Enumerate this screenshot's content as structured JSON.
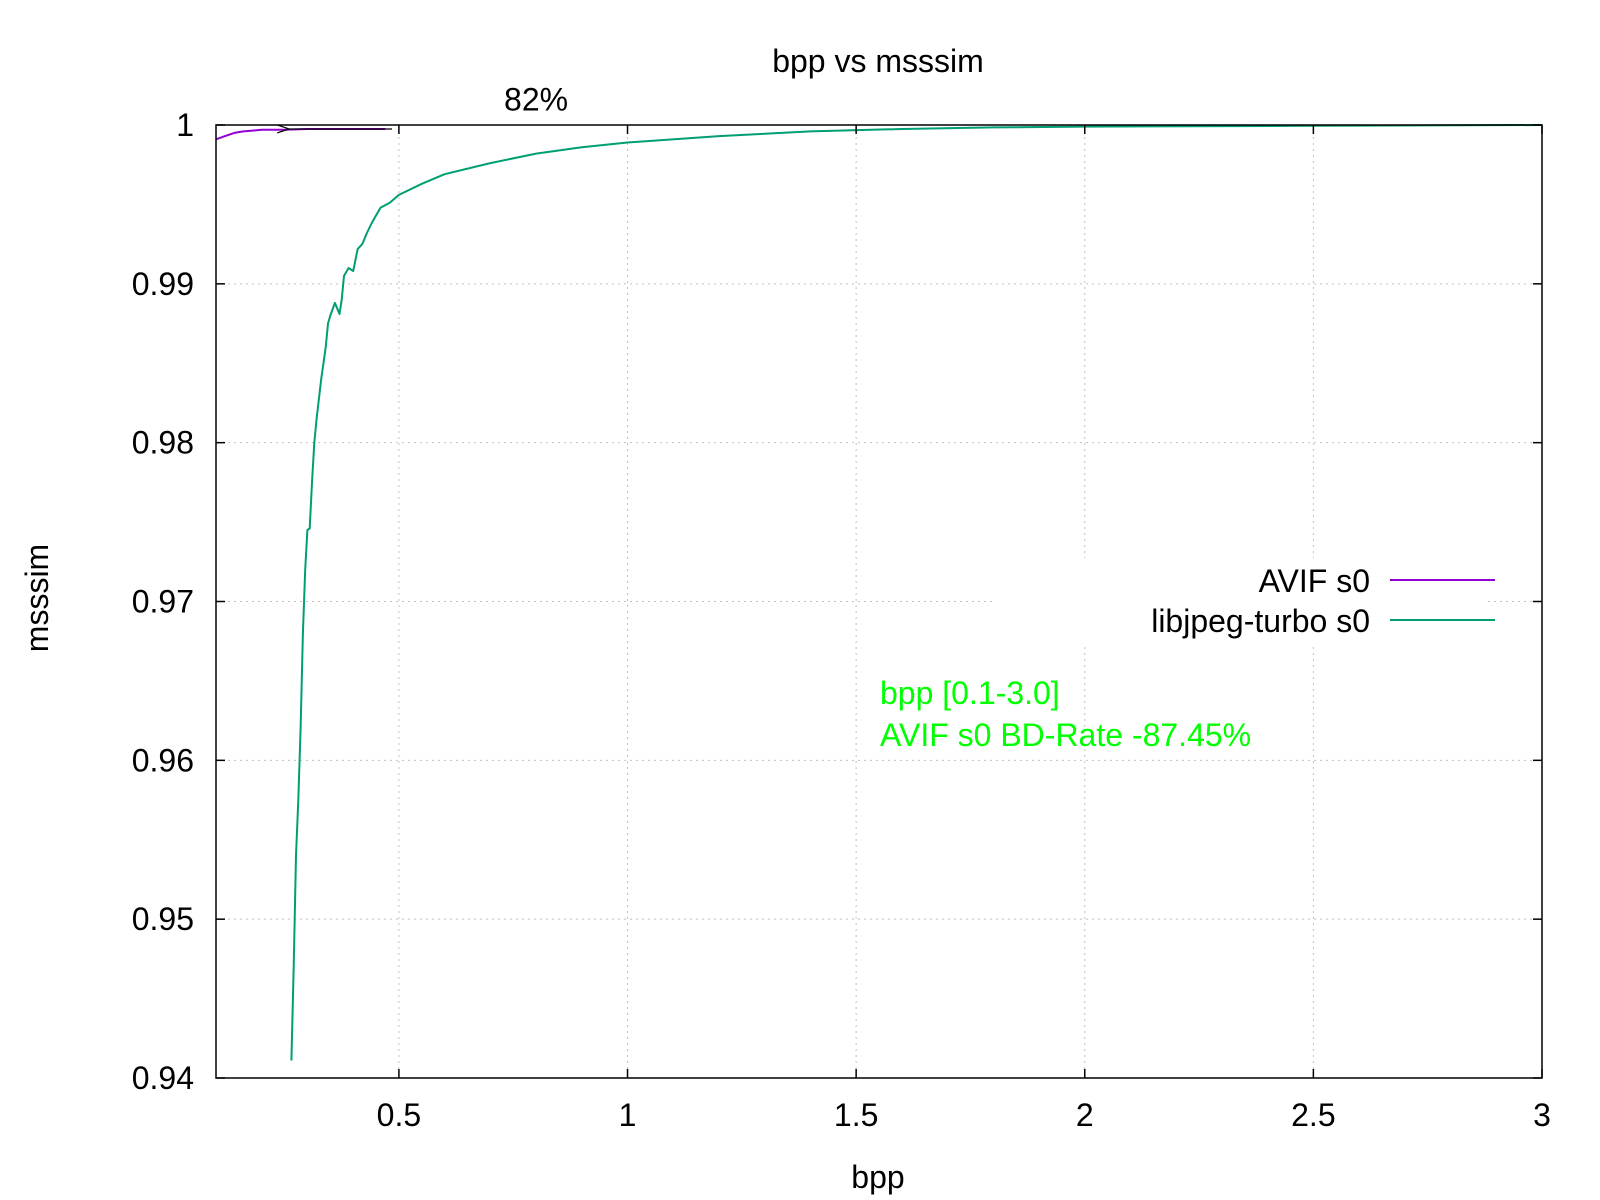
{
  "chart_data": {
    "type": "line",
    "title": "bpp vs msssim",
    "xlabel": "bpp",
    "ylabel": "msssim",
    "xlim": [
      0.1,
      3.0
    ],
    "ylim": [
      0.94,
      1.0
    ],
    "grid": true,
    "legend_position": "right",
    "x_ticks": [
      {
        "value": 0.5,
        "label": "0.5"
      },
      {
        "value": 1.0,
        "label": "1"
      },
      {
        "value": 1.5,
        "label": "1.5"
      },
      {
        "value": 2.0,
        "label": "2"
      },
      {
        "value": 2.5,
        "label": "2.5"
      },
      {
        "value": 3.0,
        "label": "3"
      }
    ],
    "y_ticks": [
      {
        "value": 0.94,
        "label": "0.94"
      },
      {
        "value": 0.95,
        "label": "0.95"
      },
      {
        "value": 0.96,
        "label": "0.96"
      },
      {
        "value": 0.97,
        "label": "0.97"
      },
      {
        "value": 0.98,
        "label": "0.98"
      },
      {
        "value": 0.99,
        "label": "0.99"
      },
      {
        "value": 1.0,
        "label": "1"
      }
    ],
    "series": [
      {
        "name": "AVIF s0",
        "color": "#9400d3",
        "x": [
          0.1,
          0.12,
          0.14,
          0.16,
          0.18,
          0.2,
          0.25,
          0.3,
          0.35,
          0.4,
          0.47
        ],
        "y": [
          0.9991,
          0.9993,
          0.9995,
          0.9996,
          0.99965,
          0.9997,
          0.9997,
          0.99975,
          0.99975,
          0.99975,
          0.99975
        ]
      },
      {
        "name": "libjpeg-turbo s0",
        "color": "#009e73",
        "x": [
          0.265,
          0.27,
          0.275,
          0.28,
          0.285,
          0.29,
          0.295,
          0.3,
          0.305,
          0.31,
          0.315,
          0.32,
          0.33,
          0.34,
          0.345,
          0.35,
          0.36,
          0.37,
          0.375,
          0.38,
          0.39,
          0.4,
          0.41,
          0.42,
          0.43,
          0.44,
          0.45,
          0.46,
          0.48,
          0.5,
          0.55,
          0.6,
          0.7,
          0.8,
          0.9,
          1.0,
          1.2,
          1.4,
          1.6,
          1.8,
          2.0,
          2.5,
          3.0
        ],
        "y": [
          0.9411,
          0.947,
          0.954,
          0.9575,
          0.962,
          0.968,
          0.972,
          0.9745,
          0.9746,
          0.9775,
          0.98,
          0.9815,
          0.984,
          0.986,
          0.9875,
          0.988,
          0.9888,
          0.9881,
          0.989,
          0.9905,
          0.991,
          0.9908,
          0.9922,
          0.9925,
          0.9932,
          0.9938,
          0.9943,
          0.9948,
          0.9951,
          0.9956,
          0.9963,
          0.9969,
          0.9976,
          0.9982,
          0.9986,
          0.9989,
          0.9993,
          0.9996,
          0.99975,
          0.99985,
          0.9999,
          0.99995,
          1.0
        ]
      }
    ],
    "annotations": [
      {
        "text": "82%",
        "x": 0.8,
        "y": 1.0009
      },
      {
        "type": "arrow",
        "from": [
          0.485,
          0.99975
        ],
        "to": [
          0.26,
          0.99975
        ]
      }
    ],
    "stats": {
      "line1": "bpp [0.1-3.0]",
      "line2": "AVIF s0 BD-Rate -87.45%"
    }
  }
}
